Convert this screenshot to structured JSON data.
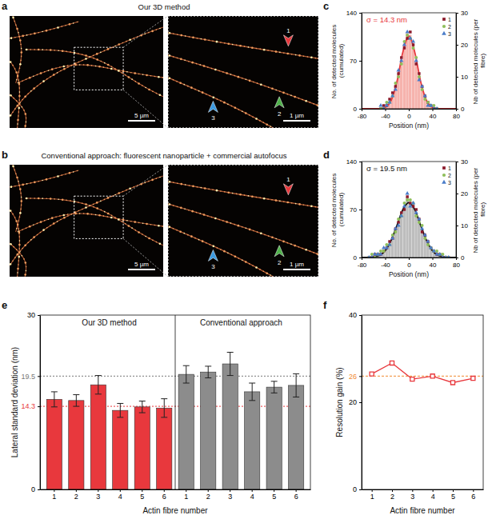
{
  "chart_data": [
    {
      "panel_label": "a",
      "type": "image",
      "title": "Our 3D method",
      "scale_bars": [
        "5 µm",
        "1 µm"
      ],
      "arrows": [
        {
          "label": "1",
          "color": "#e8383d"
        },
        {
          "label": "2",
          "color": "#4fb24a"
        },
        {
          "label": "3",
          "color": "#3b9ae1"
        }
      ]
    },
    {
      "panel_label": "b",
      "type": "image",
      "title": "Conventional approach: fluorescent nanoparticle + commercial autofocus",
      "scale_bars": [
        "5 µm",
        "1 µm"
      ],
      "arrows": [
        {
          "label": "1",
          "color": "#e8383d"
        },
        {
          "label": "2",
          "color": "#4fb24a"
        },
        {
          "label": "3",
          "color": "#3b9ae1"
        }
      ]
    },
    {
      "panel_label": "c",
      "type": "histogram",
      "annotation": "σ = 14.3 nm",
      "bins": [
        -50,
        -45,
        -40,
        -35,
        -30,
        -25,
        -20,
        -15,
        -10,
        -5,
        0,
        5,
        10,
        15,
        20,
        25,
        30,
        35,
        40,
        45,
        50
      ],
      "counts": [
        1,
        2,
        5,
        10,
        20,
        33,
        50,
        72,
        95,
        110,
        108,
        92,
        70,
        48,
        31,
        18,
        9,
        4,
        2,
        1
      ],
      "color": "#f6b3ad",
      "fit": {
        "type": "line",
        "color": "#e8383d",
        "x": [
          -80,
          -70,
          -60,
          -50,
          -40,
          -30,
          -20,
          -10,
          0,
          10,
          20,
          30,
          40,
          50,
          60,
          70,
          80
        ],
        "values": [
          0,
          0,
          0,
          0,
          2,
          12,
          40,
          83,
          106,
          83,
          40,
          12,
          2,
          0,
          0,
          0,
          0
        ]
      },
      "series": [
        {
          "name": "1",
          "color": "#8b1a2b",
          "marker": "square",
          "axis": "y2",
          "x": [
            -47.5,
            -42.5,
            -37.5,
            -32.5,
            -27.5,
            -22.5,
            -17.5,
            -12.5,
            -7.5,
            -2.5,
            2.5,
            7.5,
            12.5,
            17.5,
            22.5,
            27.5,
            32.5,
            37.5,
            42.5,
            47.5
          ],
          "values": [
            0,
            1,
            1,
            3,
            5,
            7,
            11,
            16,
            19,
            22,
            24,
            20,
            14,
            11,
            7,
            4,
            2,
            1,
            0,
            0
          ]
        },
        {
          "name": "2",
          "color": "#8fbf5a",
          "marker": "circle",
          "axis": "y2",
          "x": [
            -47.5,
            -42.5,
            -37.5,
            -32.5,
            -27.5,
            -22.5,
            -17.5,
            -12.5,
            -7.5,
            -2.5,
            2.5,
            7.5,
            12.5,
            17.5,
            22.5,
            27.5,
            32.5,
            37.5,
            42.5,
            47.5
          ],
          "values": [
            0,
            0,
            2,
            2,
            4,
            8,
            10,
            14,
            21,
            23,
            22,
            19,
            16,
            10,
            6,
            3,
            2,
            1,
            1,
            0
          ]
        },
        {
          "name": "3",
          "color": "#4a7cc9",
          "marker": "triangle",
          "axis": "y2",
          "x": [
            -47.5,
            -42.5,
            -37.5,
            -32.5,
            -27.5,
            -22.5,
            -17.5,
            -12.5,
            -7.5,
            -2.5,
            2.5,
            7.5,
            12.5,
            17.5,
            22.5,
            27.5,
            32.5,
            37.5,
            42.5,
            47.5
          ],
          "values": [
            1,
            0,
            1,
            2,
            4,
            6,
            12,
            15,
            20,
            24,
            22,
            21,
            15,
            9,
            7,
            4,
            1,
            1,
            0,
            0
          ]
        }
      ],
      "xlabel": "Position (nm)",
      "ylabel": "No. of detected molecules (cumulated)",
      "y2label": "Nb of detected molecules (per fibre)",
      "xlim": [
        -80,
        80
      ],
      "xticks": [
        -80,
        -40,
        0,
        40,
        80
      ],
      "ylim": [
        0,
        140
      ],
      "yticks": [
        0,
        70,
        140
      ],
      "y2lim": [
        0,
        30
      ],
      "y2ticks": [
        0,
        10,
        20,
        30
      ],
      "legend": "upper right"
    },
    {
      "panel_label": "d",
      "type": "histogram",
      "annotation": "σ = 19.5 nm",
      "bins": [
        -70,
        -65,
        -60,
        -55,
        -50,
        -45,
        -40,
        -35,
        -30,
        -25,
        -20,
        -15,
        -10,
        -5,
        0,
        5,
        10,
        15,
        20,
        25,
        30,
        35,
        40,
        45,
        50,
        55,
        60,
        65,
        70
      ],
      "counts": [
        1,
        1,
        2,
        4,
        6,
        10,
        14,
        20,
        30,
        40,
        52,
        62,
        75,
        88,
        80,
        78,
        66,
        55,
        42,
        32,
        22,
        14,
        9,
        6,
        4,
        2,
        1,
        1
      ],
      "color": "#bdbdbd",
      "fit": {
        "type": "line",
        "color": "#111111",
        "x": [
          -80,
          -70,
          -60,
          -50,
          -40,
          -30,
          -20,
          -10,
          0,
          10,
          20,
          30,
          40,
          50,
          60,
          70,
          80
        ],
        "values": [
          0,
          0,
          1,
          3,
          10,
          25,
          47,
          70,
          80,
          70,
          47,
          25,
          10,
          3,
          1,
          0,
          0
        ]
      },
      "series": [
        {
          "name": "1",
          "color": "#8b1a2b",
          "marker": "square",
          "axis": "y2",
          "x": [
            -67.5,
            -62.5,
            -57.5,
            -52.5,
            -47.5,
            -42.5,
            -37.5,
            -32.5,
            -27.5,
            -22.5,
            -17.5,
            -12.5,
            -7.5,
            -2.5,
            2.5,
            7.5,
            12.5,
            17.5,
            22.5,
            27.5,
            32.5,
            37.5,
            42.5,
            47.5,
            52.5,
            57.5,
            62.5,
            67.5
          ],
          "values": [
            0,
            0,
            1,
            1,
            1,
            2,
            3,
            5,
            6,
            9,
            11,
            14,
            15,
            19,
            17,
            16,
            15,
            12,
            8,
            7,
            5,
            3,
            2,
            1,
            1,
            0,
            0,
            0
          ]
        },
        {
          "name": "2",
          "color": "#8fbf5a",
          "marker": "circle",
          "axis": "y2",
          "x": [
            -67.5,
            -62.5,
            -57.5,
            -52.5,
            -47.5,
            -42.5,
            -37.5,
            -32.5,
            -27.5,
            -22.5,
            -17.5,
            -12.5,
            -7.5,
            -2.5,
            2.5,
            7.5,
            12.5,
            17.5,
            22.5,
            27.5,
            32.5,
            37.5,
            42.5,
            47.5,
            52.5,
            57.5,
            62.5,
            67.5
          ],
          "values": [
            0,
            1,
            0,
            1,
            2,
            2,
            4,
            4,
            7,
            8,
            12,
            13,
            17,
            18,
            18,
            17,
            13,
            11,
            10,
            6,
            4,
            3,
            2,
            2,
            1,
            1,
            0,
            0
          ]
        },
        {
          "name": "3",
          "color": "#4a7cc9",
          "marker": "triangle",
          "axis": "y2",
          "x": [
            -67.5,
            -62.5,
            -57.5,
            -52.5,
            -47.5,
            -42.5,
            -37.5,
            -32.5,
            -27.5,
            -22.5,
            -17.5,
            -12.5,
            -7.5,
            -2.5,
            2.5,
            7.5,
            12.5,
            17.5,
            22.5,
            27.5,
            32.5,
            37.5,
            42.5,
            47.5,
            52.5,
            57.5,
            62.5,
            67.5
          ],
          "values": [
            0,
            0,
            1,
            1,
            1,
            3,
            3,
            4,
            6,
            9,
            10,
            13,
            16,
            20,
            16,
            17,
            14,
            12,
            9,
            7,
            5,
            3,
            2,
            1,
            1,
            0,
            0,
            0
          ]
        }
      ],
      "xlabel": "Position (nm)",
      "ylabel": "No. of detected molecules (cumulated)",
      "y2label": "Nb of detected molecules (per fibre)",
      "xlim": [
        -80,
        80
      ],
      "xticks": [
        -80,
        -40,
        0,
        40,
        80
      ],
      "ylim": [
        0,
        140
      ],
      "yticks": [
        0,
        70,
        140
      ],
      "y2lim": [
        0,
        30
      ],
      "y2ticks": [
        0,
        10,
        20,
        30
      ],
      "legend": "upper right"
    },
    {
      "panel_label": "e",
      "type": "bar",
      "categories": [
        "1",
        "2",
        "3",
        "4",
        "5",
        "6"
      ],
      "series": [
        {
          "name": "Our 3D method",
          "color": "#e8383d",
          "values": [
            15.5,
            15.3,
            18.0,
            13.6,
            14.2,
            14.0
          ],
          "errors": [
            1.3,
            1.0,
            1.6,
            1.2,
            1.0,
            1.6
          ]
        },
        {
          "name": "Conventional approach",
          "color": "#8c8c8c",
          "values": [
            19.8,
            20.2,
            21.6,
            16.8,
            17.6,
            17.9
          ],
          "errors": [
            1.5,
            1.0,
            2.0,
            1.5,
            1.0,
            2.0
          ]
        }
      ],
      "ylim": [
        0,
        30
      ],
      "yticks": [
        0,
        14.3,
        19.5,
        30
      ],
      "reference_lines": [
        {
          "value": 14.3,
          "color": "#e8383d"
        },
        {
          "value": 19.5,
          "color": "#777777"
        }
      ],
      "ylabel": "Lateral standard deviation (nm)",
      "xlabel": "Actin fibre number"
    },
    {
      "panel_label": "f",
      "type": "line",
      "categories": [
        "1",
        "2",
        "3",
        "4",
        "5",
        "6"
      ],
      "values": [
        26.5,
        29.0,
        25.3,
        26.0,
        24.5,
        25.5
      ],
      "color": "#e8383d",
      "marker": "square",
      "ylim": [
        0,
        40
      ],
      "yticks": [
        0,
        20,
        26,
        40
      ],
      "reference_lines": [
        {
          "value": 26,
          "color": "#f0892f"
        }
      ],
      "ylabel": "Resolution gain (%)",
      "xlabel": "Actin fibre number"
    }
  ]
}
